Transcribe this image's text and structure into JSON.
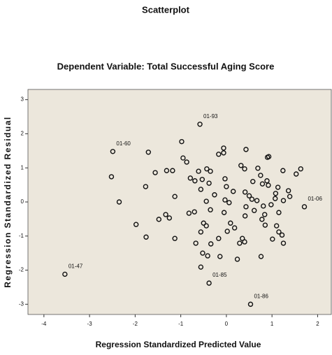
{
  "chart_data": {
    "type": "scatter",
    "title": "Scatterplot",
    "subtitle": "Dependent Variable: Total Successful Aging Score",
    "x_label": "Regression Standardized Predicted Value",
    "y_label": "Regression Standardized Residual",
    "color": "#111111",
    "background": "#ece7dc",
    "grid": false,
    "xlim": [
      -4.35,
      2.3
    ],
    "ylim": [
      -3.3,
      3.3
    ],
    "xticks": [
      -4,
      -3,
      -2,
      -1,
      0,
      1,
      2
    ],
    "yticks": [
      -3,
      -2,
      -1,
      0,
      1,
      2,
      3
    ],
    "x": [
      -0.58,
      -2.49,
      -1.71,
      -0.98,
      -2.52,
      -2.35,
      -3.54,
      1.71,
      -0.38,
      0.53,
      -1.77,
      -1.56,
      -1.31,
      -1.18,
      -0.95,
      -0.87,
      -1.98,
      -1.76,
      -1.48,
      -1.33,
      -1.25,
      -1.13,
      -1.13,
      -0.82,
      -0.7,
      -0.79,
      -0.69,
      -0.53,
      -0.43,
      -0.61,
      -0.56,
      -0.38,
      -0.35,
      -0.67,
      -0.5,
      -0.56,
      -0.44,
      -0.34,
      -0.41,
      -0.52,
      -0.56,
      -0.35,
      -0.44,
      -0.26,
      -0.17,
      -0.06,
      -0.06,
      -0.03,
      0.0,
      -0.03,
      -0.05,
      0.06,
      0.15,
      0.09,
      0.02,
      -0.17,
      0.18,
      0.29,
      0.24,
      -0.14,
      0.43,
      0.32,
      0.4,
      0.41,
      0.5,
      0.56,
      0.58,
      0.69,
      0.75,
      0.79,
      0.9,
      0.93,
      0.89,
      0.92,
      0.81,
      0.67,
      0.43,
      0.41,
      0.4,
      0.35,
      0.61,
      0.78,
      0.85,
      0.84,
      0.98,
      1.08,
      1.13,
      1.01,
      1.1,
      1.15,
      1.22,
      1.25,
      0.76,
      1.24,
      1.25,
      1.36,
      1.39,
      1.53,
      1.63,
      1.07,
      1.15
    ],
    "values": [
      2.28,
      1.48,
      1.46,
      1.77,
      0.74,
      0.0,
      -2.12,
      -0.14,
      -2.38,
      -3.0,
      0.45,
      0.86,
      0.92,
      0.92,
      1.29,
      1.17,
      -0.66,
      -1.03,
      -0.51,
      -0.37,
      -0.47,
      0.16,
      -1.07,
      -0.33,
      -0.29,
      0.7,
      0.62,
      0.66,
      0.97,
      0.9,
      0.37,
      0.55,
      0.9,
      -1.21,
      -0.62,
      -0.88,
      -0.7,
      -1.23,
      -1.58,
      -1.5,
      -1.91,
      -0.23,
      0.02,
      0.21,
      1.4,
      1.58,
      1.44,
      0.68,
      0.45,
      0.06,
      -0.31,
      -0.02,
      0.31,
      -0.62,
      -0.86,
      -1.07,
      -0.76,
      -1.21,
      -1.68,
      -1.6,
      1.54,
      1.07,
      0.97,
      0.29,
      0.18,
      0.08,
      0.6,
      0.99,
      0.78,
      0.53,
      1.31,
      1.33,
      0.62,
      0.49,
      -0.12,
      0.04,
      -0.14,
      -0.41,
      -1.17,
      -1.07,
      -0.25,
      -0.51,
      -0.68,
      -0.37,
      -0.08,
      0.25,
      0.43,
      -1.09,
      -0.7,
      -0.88,
      -0.97,
      -1.21,
      -1.6,
      0.92,
      0.04,
      0.33,
      0.16,
      0.82,
      0.97,
      0.1,
      -0.31
    ],
    "annotations": [
      {
        "text": "01-93",
        "x": -0.58,
        "y": 2.28
      },
      {
        "text": "01-60",
        "x": -2.49,
        "y": 1.48
      },
      {
        "text": "01-06",
        "x": 1.71,
        "y": -0.14
      },
      {
        "text": "01-47",
        "x": -3.54,
        "y": -2.12
      },
      {
        "text": "01-85",
        "x": -0.38,
        "y": -2.38
      },
      {
        "text": "01-86",
        "x": 0.53,
        "y": -3.0
      }
    ]
  }
}
